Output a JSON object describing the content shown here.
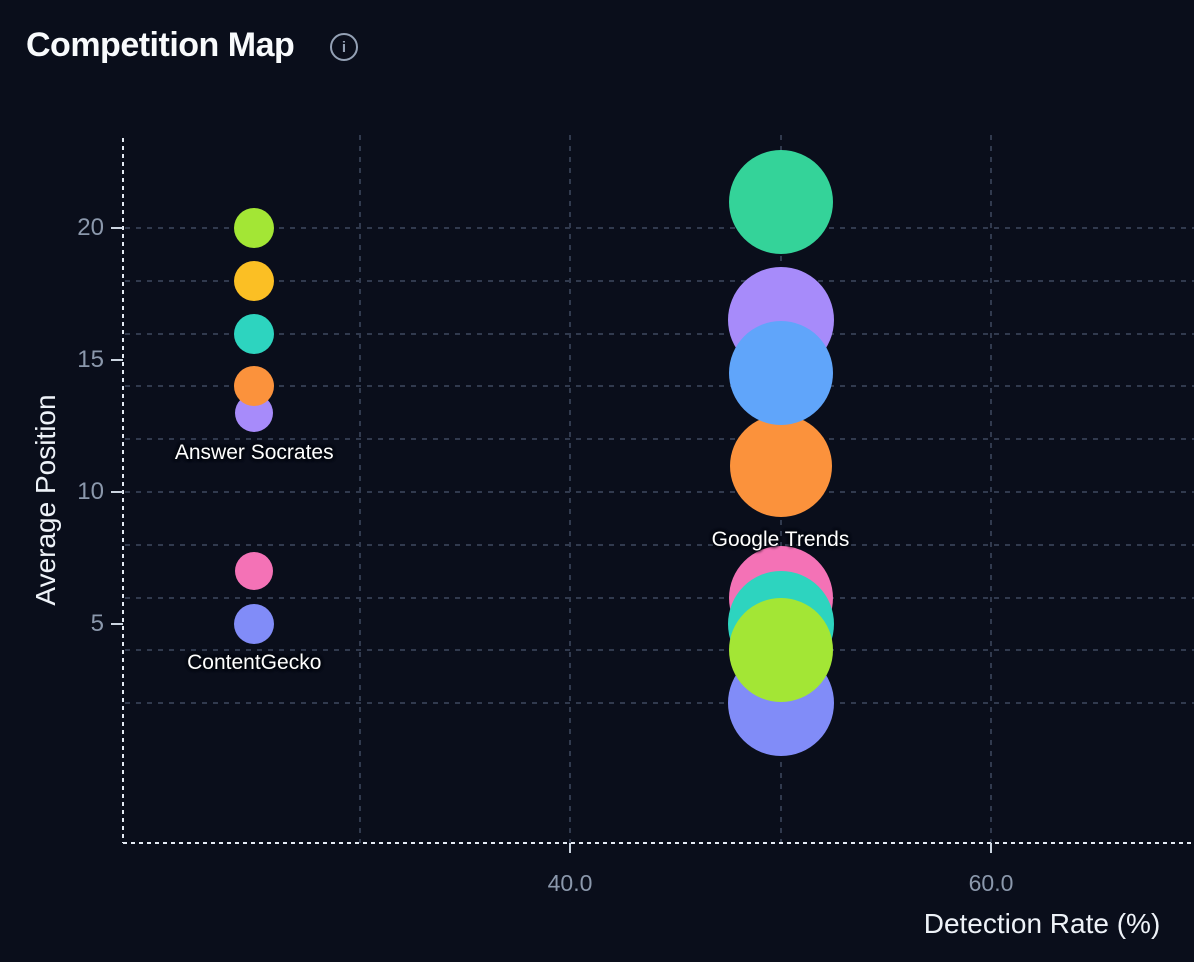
{
  "header": {
    "title": "Competition Map",
    "info_glyph": "i"
  },
  "chart_data": {
    "type": "scatter",
    "title": "Competition Map",
    "xlabel": "Detection Rate (%)",
    "ylabel": "Average Position",
    "xlim": [
      19,
      70
    ],
    "ylim": [
      -3.5,
      23.5
    ],
    "grid": true,
    "legend": "none",
    "x_ticks": [
      {
        "value": 40,
        "label": "40.0"
      },
      {
        "value": 60,
        "label": "60.0"
      }
    ],
    "y_ticks": [
      {
        "value": 20,
        "label": "20"
      },
      {
        "value": 15,
        "label": "15"
      },
      {
        "value": 10,
        "label": "10"
      },
      {
        "value": 5,
        "label": "5"
      }
    ],
    "x_gridlines": [
      30,
      40,
      50,
      60
    ],
    "y_gridlines": [
      20,
      18,
      16,
      14,
      12,
      10,
      8,
      6,
      4,
      2
    ],
    "palette": {
      "lime": "#a3e635",
      "amber": "#fbbf24",
      "teal": "#2dd4bf",
      "orange": "#fb923c",
      "violet": "#a78bfa",
      "pink": "#f472b6",
      "indigo": "#818cf8",
      "emerald": "#34d399",
      "blue": "#60a5fa"
    },
    "bubbles": [
      {
        "id": "lime-left",
        "detection_rate": 25,
        "avg_position": 20,
        "r": 20,
        "color": "lime"
      },
      {
        "id": "amber-left",
        "detection_rate": 25,
        "avg_position": 18,
        "r": 20,
        "color": "amber"
      },
      {
        "id": "teal-left",
        "detection_rate": 25,
        "avg_position": 16,
        "r": 20,
        "color": "teal"
      },
      {
        "id": "violet-left",
        "detection_rate": 25,
        "avg_position": 13,
        "r": 19,
        "color": "violet",
        "label": "Answer Socrates",
        "label_dy": 41
      },
      {
        "id": "orange-left",
        "detection_rate": 25,
        "avg_position": 14,
        "r": 20,
        "color": "orange"
      },
      {
        "id": "pink-left",
        "detection_rate": 25,
        "avg_position": 7,
        "r": 19,
        "color": "pink"
      },
      {
        "id": "indigo-left",
        "detection_rate": 25,
        "avg_position": 5,
        "r": 20,
        "color": "indigo",
        "label": "ContentGecko",
        "label_dy": 40
      },
      {
        "id": "emerald-right",
        "detection_rate": 50,
        "avg_position": 21,
        "r": 52,
        "color": "emerald"
      },
      {
        "id": "violet-right",
        "detection_rate": 50,
        "avg_position": 16.5,
        "r": 53,
        "color": "violet"
      },
      {
        "id": "orange-right",
        "detection_rate": 50,
        "avg_position": 11,
        "r": 51,
        "color": "orange",
        "label": "Google Trends",
        "label_dy": 75
      },
      {
        "id": "blue-right",
        "detection_rate": 50,
        "avg_position": 14.5,
        "r": 52,
        "color": "blue"
      },
      {
        "id": "pink-right",
        "detection_rate": 50,
        "avg_position": 6,
        "r": 52,
        "color": "pink"
      },
      {
        "id": "teal-right",
        "detection_rate": 50,
        "avg_position": 5,
        "r": 53,
        "color": "teal"
      },
      {
        "id": "indigo-right",
        "detection_rate": 50,
        "avg_position": 2,
        "r": 53,
        "color": "indigo"
      },
      {
        "id": "lime-right",
        "detection_rate": 50,
        "avg_position": 4,
        "r": 52,
        "color": "lime"
      }
    ]
  }
}
